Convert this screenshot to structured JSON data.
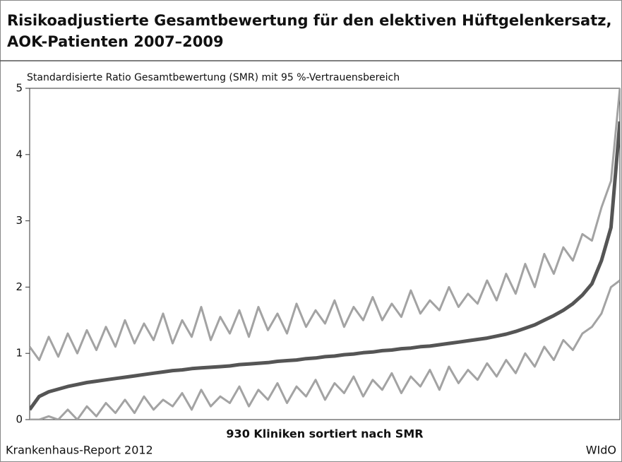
{
  "chart_data": {
    "type": "line",
    "title": [
      "Risikoadjustierte Gesamtbewertung für den elektiven Hüftgelenkersatz,",
      "AOK-Patienten 2007–2009"
    ],
    "y_label": "Standardisierte Ratio Gesamtbewertung (SMR) mit 95 %-Vertrauensbereich",
    "x_label": "930 Kliniken sortiert nach SMR",
    "source": "Krankenhaus-Report 2012",
    "publisher": "WIdO",
    "xlim": [
      1,
      930
    ],
    "ylim": [
      0,
      5
    ],
    "yticks": [
      0,
      1,
      2,
      3,
      4,
      5
    ],
    "x": [
      1,
      16,
      31,
      46,
      61,
      76,
      91,
      106,
      121,
      136,
      151,
      166,
      181,
      196,
      211,
      226,
      241,
      256,
      271,
      286,
      301,
      316,
      331,
      346,
      361,
      376,
      391,
      406,
      421,
      436,
      451,
      466,
      481,
      496,
      511,
      526,
      541,
      556,
      571,
      586,
      601,
      616,
      631,
      646,
      661,
      676,
      691,
      706,
      721,
      736,
      751,
      766,
      781,
      796,
      811,
      826,
      841,
      856,
      871,
      886,
      901,
      916,
      930
    ],
    "series": [
      {
        "color": "#a3a3a3",
        "width": 3,
        "values": [
          1.1,
          0.9,
          1.25,
          0.95,
          1.3,
          1.0,
          1.35,
          1.05,
          1.4,
          1.1,
          1.5,
          1.15,
          1.45,
          1.2,
          1.6,
          1.15,
          1.5,
          1.25,
          1.7,
          1.2,
          1.55,
          1.3,
          1.65,
          1.25,
          1.7,
          1.35,
          1.6,
          1.3,
          1.75,
          1.4,
          1.65,
          1.45,
          1.8,
          1.4,
          1.7,
          1.5,
          1.85,
          1.5,
          1.75,
          1.55,
          1.95,
          1.6,
          1.8,
          1.65,
          2.0,
          1.7,
          1.9,
          1.75,
          2.1,
          1.8,
          2.2,
          1.9,
          2.35,
          2.0,
          2.5,
          2.2,
          2.6,
          2.4,
          2.8,
          2.7,
          3.2,
          3.6,
          5.0
        ]
      },
      {
        "color": "#a3a3a3",
        "width": 3,
        "values": [
          0.0,
          0.0,
          0.05,
          0.0,
          0.15,
          0.0,
          0.2,
          0.05,
          0.25,
          0.1,
          0.3,
          0.1,
          0.35,
          0.15,
          0.3,
          0.2,
          0.4,
          0.15,
          0.45,
          0.2,
          0.35,
          0.25,
          0.5,
          0.2,
          0.45,
          0.3,
          0.55,
          0.25,
          0.5,
          0.35,
          0.6,
          0.3,
          0.55,
          0.4,
          0.65,
          0.35,
          0.6,
          0.45,
          0.7,
          0.4,
          0.65,
          0.5,
          0.75,
          0.45,
          0.8,
          0.55,
          0.75,
          0.6,
          0.85,
          0.65,
          0.9,
          0.7,
          1.0,
          0.8,
          1.1,
          0.9,
          1.2,
          1.05,
          1.3,
          1.4,
          1.6,
          2.0,
          2.1
        ]
      },
      {
        "color": "#555555",
        "width": 5,
        "values": [
          0.15,
          0.35,
          0.42,
          0.46,
          0.5,
          0.53,
          0.56,
          0.58,
          0.6,
          0.62,
          0.64,
          0.66,
          0.68,
          0.7,
          0.72,
          0.74,
          0.75,
          0.77,
          0.78,
          0.79,
          0.8,
          0.81,
          0.83,
          0.84,
          0.85,
          0.86,
          0.88,
          0.89,
          0.9,
          0.92,
          0.93,
          0.95,
          0.96,
          0.98,
          0.99,
          1.01,
          1.02,
          1.04,
          1.05,
          1.07,
          1.08,
          1.1,
          1.11,
          1.13,
          1.15,
          1.17,
          1.19,
          1.21,
          1.23,
          1.26,
          1.29,
          1.33,
          1.38,
          1.43,
          1.5,
          1.57,
          1.65,
          1.75,
          1.88,
          2.05,
          2.4,
          2.9,
          4.5
        ]
      }
    ]
  }
}
